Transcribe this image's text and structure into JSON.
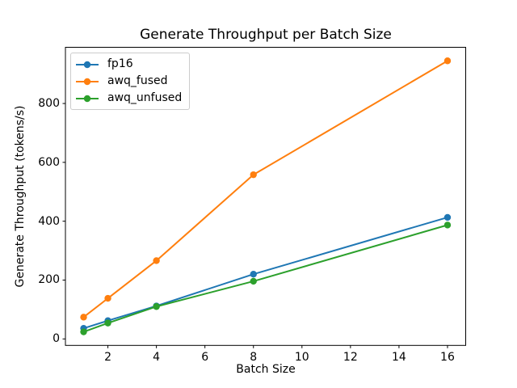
{
  "chart_data": {
    "type": "line",
    "title": "Generate Throughput per Batch Size",
    "xlabel": "Batch Size",
    "ylabel": "Generate Throughput (tokens/s)",
    "x": [
      1,
      2,
      4,
      8,
      16
    ],
    "series": [
      {
        "name": "fp16",
        "color": "#1f77b4",
        "values": [
          36,
          62,
          112,
          220,
          413
        ]
      },
      {
        "name": "awq_fused",
        "color": "#ff7f0e",
        "values": [
          74,
          138,
          266,
          558,
          945
        ]
      },
      {
        "name": "awq_unfused",
        "color": "#2ca02c",
        "values": [
          24,
          54,
          110,
          196,
          387
        ]
      }
    ],
    "xticks": [
      2,
      4,
      6,
      8,
      10,
      12,
      14,
      16
    ],
    "yticks": [
      0,
      200,
      400,
      600,
      800
    ],
    "xlim": [
      0.25,
      16.75
    ],
    "ylim": [
      -22,
      991
    ],
    "grid": false,
    "marker": "o",
    "legend_position": "upper left"
  }
}
